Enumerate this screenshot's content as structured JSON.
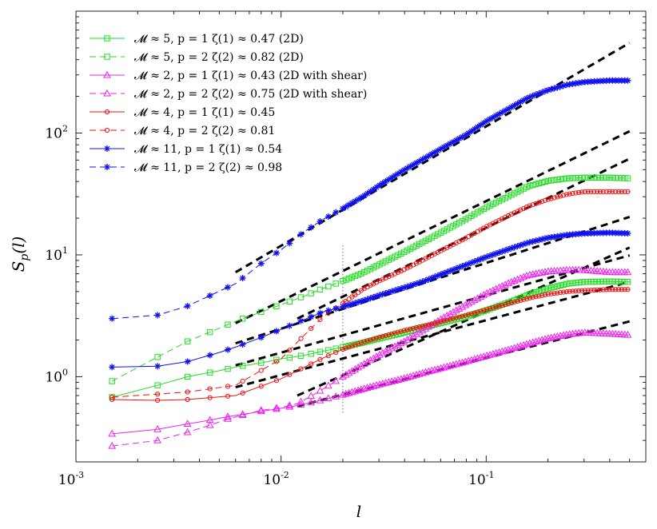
{
  "chart_data": {
    "type": "line",
    "scale": "log-log",
    "xlabel": "l",
    "ylabel": "S_p(l)",
    "xlim": [
      0.001,
      0.6
    ],
    "ylim": [
      0.2,
      1000
    ],
    "grid": false,
    "legend_placement": "top-left",
    "x_ticks": [
      {
        "value": 0.001,
        "base": "10",
        "exp": "-3"
      },
      {
        "value": 0.01,
        "base": "10",
        "exp": "-2"
      },
      {
        "value": 0.1,
        "base": "10",
        "exp": "-1"
      }
    ],
    "y_ticks": [
      {
        "value": 1,
        "base": "10",
        "exp": "0"
      },
      {
        "value": 10,
        "base": "10",
        "exp": "1"
      },
      {
        "value": 100,
        "base": "10",
        "exp": "2"
      }
    ],
    "reference_line": {
      "x": 0.02,
      "style": "dotted"
    },
    "series": [
      {
        "name": "M ≈ 5, p = 1",
        "legend": "𝓜 ≈ 5, p = 1    ζ(1) ≈ 0.47  (2D)",
        "color": "#22dd22",
        "marker": "square",
        "dash": false,
        "x": [
          0.0015,
          0.0025,
          0.0035,
          0.005,
          0.006,
          0.008,
          0.01,
          0.013,
          0.016,
          0.02,
          0.025,
          0.03,
          0.04,
          0.05,
          0.06,
          0.08,
          0.1,
          0.13,
          0.16,
          0.2,
          0.25,
          0.3,
          0.4,
          0.5
        ],
        "y": [
          0.68,
          0.85,
          1.0,
          1.12,
          1.2,
          1.3,
          1.4,
          1.5,
          1.62,
          1.75,
          1.9,
          2.05,
          2.3,
          2.55,
          2.75,
          3.1,
          3.5,
          4.1,
          4.7,
          5.3,
          5.8,
          6.0,
          6.05,
          6.0
        ],
        "fit": {
          "from": 0.006,
          "to": 0.5,
          "y0": 1.24,
          "slope": 0.47
        }
      },
      {
        "name": "M ≈ 5, p = 2",
        "legend": "𝓜 ≈ 5, p = 2    ζ(2) ≈ 0.82  (2D)",
        "color": "#22dd22",
        "marker": "square",
        "dash": true,
        "x": [
          0.0015,
          0.0025,
          0.0035,
          0.005,
          0.006,
          0.008,
          0.01,
          0.013,
          0.016,
          0.02,
          0.025,
          0.03,
          0.04,
          0.05,
          0.06,
          0.08,
          0.1,
          0.13,
          0.16,
          0.2,
          0.25,
          0.3,
          0.4,
          0.5
        ],
        "y": [
          0.92,
          1.45,
          1.95,
          2.5,
          2.85,
          3.4,
          3.9,
          4.6,
          5.3,
          6.1,
          7.1,
          8.3,
          10.6,
          12.9,
          15.2,
          19.7,
          24.5,
          30.5,
          36.5,
          40.5,
          42.5,
          43,
          43,
          42.5
        ],
        "fit": {
          "from": 0.006,
          "to": 0.5,
          "y0": 2.75,
          "slope": 0.82
        }
      },
      {
        "name": "M ≈ 2, p = 1",
        "legend": "𝓜 ≈ 2, p = 1    ζ(1) ≈ 0.43  (2D with shear)",
        "color": "#ee22ee",
        "marker": "triangle",
        "dash": false,
        "x": [
          0.0015,
          0.0025,
          0.0035,
          0.0045,
          0.0055,
          0.007,
          0.008,
          0.01,
          0.012,
          0.015,
          0.02,
          0.025,
          0.03,
          0.04,
          0.05,
          0.06,
          0.08,
          0.1,
          0.13,
          0.16,
          0.2,
          0.25,
          0.3,
          0.4,
          0.5
        ],
        "y": [
          0.34,
          0.37,
          0.41,
          0.44,
          0.47,
          0.5,
          0.52,
          0.55,
          0.58,
          0.63,
          0.71,
          0.79,
          0.86,
          0.97,
          1.08,
          1.17,
          1.33,
          1.48,
          1.67,
          1.86,
          2.06,
          2.22,
          2.3,
          2.25,
          2.2
        ],
        "fit": {
          "from": 0.012,
          "to": 0.5,
          "y0": 0.572,
          "slope": 0.43
        }
      },
      {
        "name": "M ≈ 2, p = 2",
        "legend": "𝓜 ≈ 2, p = 2    ζ(2) ≈ 0.75  (2D with shear)",
        "color": "#ee22ee",
        "marker": "triangle",
        "dash": true,
        "x": [
          0.0015,
          0.0025,
          0.0035,
          0.0045,
          0.0055,
          0.007,
          0.008,
          0.01,
          0.012,
          0.015,
          0.02,
          0.025,
          0.03,
          0.04,
          0.05,
          0.06,
          0.08,
          0.1,
          0.13,
          0.16,
          0.2,
          0.25,
          0.3,
          0.4,
          0.5
        ],
        "y": [
          0.27,
          0.3,
          0.35,
          0.4,
          0.45,
          0.5,
          0.53,
          0.56,
          0.6,
          0.74,
          1.0,
          1.25,
          1.5,
          1.95,
          2.45,
          2.95,
          3.9,
          4.8,
          5.9,
          6.8,
          7.3,
          7.5,
          7.5,
          7.2,
          7.2
        ],
        "fit": {
          "from": 0.012,
          "to": 0.5,
          "y0": 0.7,
          "slope": 0.75
        }
      },
      {
        "name": "M ≈ 4, p = 1",
        "legend": "𝓜 ≈ 4, p = 1    ζ(1) ≈ 0.45",
        "color": "#ee1111",
        "marker": "circle",
        "dash": false,
        "x": [
          0.0015,
          0.0025,
          0.0035,
          0.006,
          0.01,
          0.013,
          0.016,
          0.02,
          0.025,
          0.03,
          0.04,
          0.05,
          0.06,
          0.08,
          0.1,
          0.13,
          0.16,
          0.2,
          0.25,
          0.3,
          0.4,
          0.5
        ],
        "y": [
          0.65,
          0.64,
          0.65,
          0.7,
          0.96,
          1.2,
          1.42,
          1.68,
          1.92,
          2.1,
          2.4,
          2.62,
          2.82,
          3.2,
          3.55,
          4.0,
          4.4,
          4.75,
          5.0,
          5.1,
          5.2,
          5.2
        ],
        "fit": {
          "from": 0.006,
          "to": 0.5,
          "y0": 0.82,
          "slope": 0.45
        }
      },
      {
        "name": "M ≈ 4, p = 2",
        "legend": "𝓜 ≈ 4, p = 2    ζ(2) ≈ 0.81",
        "color": "#ee1111",
        "marker": "circle",
        "dash": true,
        "x": [
          0.0015,
          0.0025,
          0.0035,
          0.006,
          0.01,
          0.013,
          0.016,
          0.02,
          0.025,
          0.03,
          0.04,
          0.05,
          0.06,
          0.08,
          0.1,
          0.13,
          0.16,
          0.2,
          0.25,
          0.3,
          0.4,
          0.5
        ],
        "y": [
          0.68,
          0.72,
          0.75,
          0.85,
          1.4,
          2.2,
          3.1,
          4.0,
          5.2,
          6.1,
          7.6,
          9.2,
          10.8,
          13.8,
          17.0,
          21.2,
          25.0,
          28.5,
          31.5,
          33.0,
          33.0,
          33.0
        ],
        "fit": {
          "from": 0.012,
          "to": 0.5,
          "y0": 3.0,
          "slope": 0.81
        }
      },
      {
        "name": "M ≈ 11, p = 1",
        "legend": "𝓜 ≈ 11, p = 1  ζ(1) ≈ 0.54",
        "color": "#1111ee",
        "marker": "star",
        "dash": false,
        "x": [
          0.0015,
          0.0025,
          0.0035,
          0.005,
          0.006,
          0.008,
          0.01,
          0.013,
          0.016,
          0.02,
          0.025,
          0.03,
          0.04,
          0.05,
          0.06,
          0.08,
          0.1,
          0.13,
          0.16,
          0.2,
          0.25,
          0.3,
          0.4,
          0.5
        ],
        "y": [
          1.2,
          1.22,
          1.33,
          1.58,
          1.75,
          2.1,
          2.45,
          2.95,
          3.4,
          3.75,
          4.2,
          4.65,
          5.4,
          6.1,
          6.9,
          8.3,
          9.6,
          11.2,
          12.6,
          13.8,
          14.6,
          15.0,
          15.2,
          15.0
        ],
        "fit": {
          "from": 0.006,
          "to": 0.5,
          "y0": 1.88,
          "slope": 0.54
        }
      },
      {
        "name": "M ≈ 11, p = 2",
        "legend": "𝓜 ≈ 11, p = 2  ζ(2) ≈ 0.98",
        "color": "#1111ee",
        "marker": "star",
        "dash": true,
        "x": [
          0.0015,
          0.0025,
          0.0035,
          0.006,
          0.008,
          0.01,
          0.013,
          0.016,
          0.02,
          0.025,
          0.03,
          0.04,
          0.05,
          0.06,
          0.08,
          0.1,
          0.13,
          0.16,
          0.2,
          0.25,
          0.3,
          0.4,
          0.5
        ],
        "y": [
          3.0,
          3.2,
          3.8,
          5.8,
          8.5,
          11.0,
          15.5,
          19.5,
          24.0,
          30.0,
          37.0,
          50.0,
          62.0,
          74.0,
          97.0,
          125.0,
          160.0,
          195.0,
          225.0,
          250.0,
          262.0,
          270.0,
          270.0
        ],
        "fit": {
          "from": 0.006,
          "to": 0.5,
          "y0": 7.2,
          "slope": 0.98
        }
      }
    ]
  }
}
